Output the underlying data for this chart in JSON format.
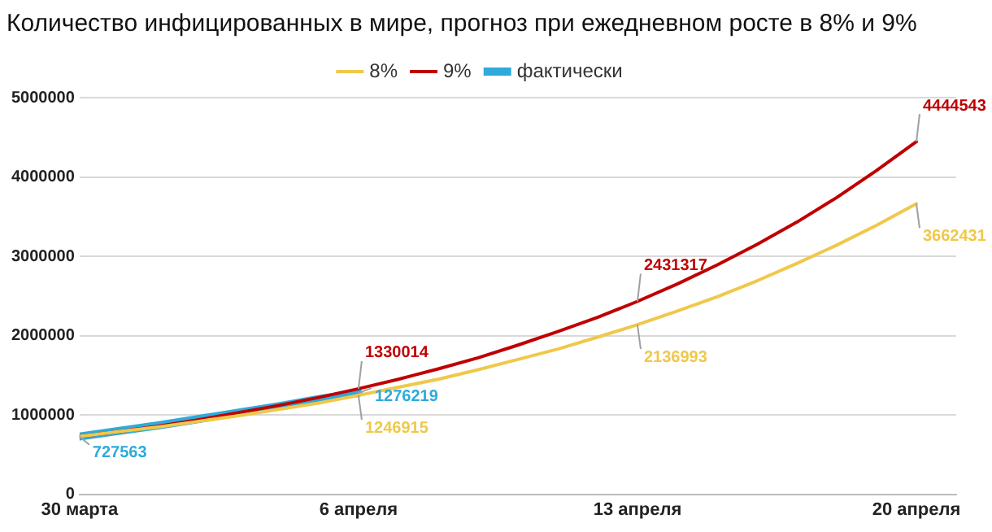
{
  "chart_data": {
    "type": "line",
    "title": "Количество инфицированных в мире, прогноз при ежедневном росте в 8% и 9%",
    "x": [
      "--03-30",
      "--03-31",
      "--04-01",
      "--04-02",
      "--04-03",
      "--04-04",
      "--04-05",
      "--04-06",
      "--04-07",
      "--04-08",
      "--04-09",
      "--04-10",
      "--04-11",
      "--04-12",
      "--04-13",
      "--04-14",
      "--04-15",
      "--04-16",
      "--04-17",
      "--04-18",
      "--04-19",
      "--04-20"
    ],
    "series": [
      {
        "name": "фактически",
        "color": "#2eaadc",
        "x": [
          "--03-30",
          "--03-31",
          "--04-01",
          "--04-02",
          "--04-03",
          "--04-04",
          "--04-05",
          "--04-06"
        ],
        "values": [
          727563,
          800000,
          870000,
          950000,
          1030000,
          1110000,
          1200000,
          1276219
        ],
        "value_labels": [
          "727563",
          null,
          null,
          null,
          null,
          null,
          null,
          "1276219"
        ]
      },
      {
        "name": "8%",
        "color": "#f0c84a",
        "values": [
          730000,
          790000,
          850000,
          920000,
          990000,
          1070000,
          1150000,
          1246915,
          1350000,
          1450000,
          1570000,
          1700000,
          1830000,
          1980000,
          2136993,
          2310000,
          2490000,
          2690000,
          2910000,
          3140000,
          3390000,
          3662431
        ],
        "value_labels": [
          null,
          null,
          null,
          null,
          null,
          null,
          null,
          "1246915",
          null,
          null,
          null,
          null,
          null,
          null,
          "2136993",
          null,
          null,
          null,
          null,
          null,
          null,
          "3662431"
        ]
      },
      {
        "name": "9%",
        "color": "#c00000",
        "values": [
          730000,
          790000,
          860000,
          940000,
          1030000,
          1120000,
          1220000,
          1330014,
          1450000,
          1580000,
          1720000,
          1880000,
          2050000,
          2230000,
          2431317,
          2650000,
          2890000,
          3150000,
          3430000,
          3740000,
          4080000,
          4444543
        ],
        "value_labels": [
          null,
          null,
          null,
          null,
          null,
          null,
          null,
          "1330014",
          null,
          null,
          null,
          null,
          null,
          null,
          "2431317",
          null,
          null,
          null,
          null,
          null,
          null,
          "4444543"
        ]
      }
    ],
    "xlim": [
      "--03-30",
      "--04-21"
    ],
    "xticks": [
      {
        "value": "--03-30",
        "label": "30 марта"
      },
      {
        "value": "--04-06",
        "label": "6 апреля"
      },
      {
        "value": "--04-13",
        "label": "13 апреля"
      },
      {
        "value": "--04-20",
        "label": "20 апреля"
      }
    ],
    "ylim": [
      0,
      5000000
    ],
    "yticks": [
      0,
      1000000,
      2000000,
      3000000,
      4000000,
      5000000
    ],
    "grid": "y",
    "legend": "top",
    "marker": "none",
    "line_style": "solid"
  }
}
